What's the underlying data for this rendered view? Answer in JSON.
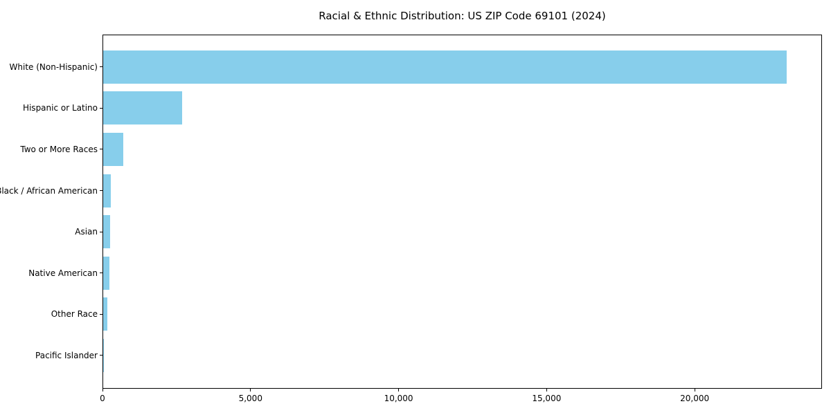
{
  "chart_data": {
    "type": "bar",
    "orientation": "horizontal",
    "title": "Racial & Ethnic Distribution: US ZIP Code 69101 (2024)",
    "categories": [
      "White (Non-Hispanic)",
      "Hispanic or Latino",
      "Two or More Races",
      "Black / African American",
      "Asian",
      "Native American",
      "Other Race",
      "Pacific Islander"
    ],
    "values": [
      23130,
      2660,
      690,
      265,
      240,
      220,
      145,
      10
    ],
    "bar_color": "#87CEEB",
    "xlim": [
      0,
      24300
    ],
    "x_ticks": [
      0,
      5000,
      10000,
      15000,
      20000
    ],
    "x_tick_labels": [
      "0",
      "5,000",
      "10,000",
      "15,000",
      "20,000"
    ],
    "xlabel": "",
    "ylabel": "",
    "grid": false,
    "legend": null,
    "background_color": "#ffffff",
    "text_color": "#000000",
    "spine_color": "#000000"
  }
}
